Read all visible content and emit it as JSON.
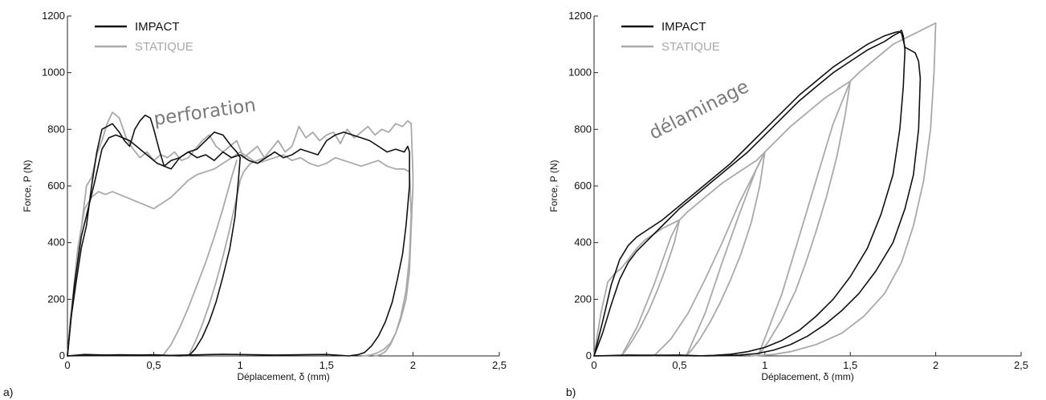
{
  "colors": {
    "impact": "#111111",
    "statique": "#a9a9a9",
    "axis": "#222222",
    "annotation": "#7a7a7a"
  },
  "chart_data": [
    {
      "type": "line",
      "panel_label": "a)",
      "xlabel": "Déplacement, δ (mm)",
      "ylabel": "Force, P (N)",
      "xlim": [
        0,
        2.5
      ],
      "ylim": [
        0,
        1200
      ],
      "xticks": [
        0,
        0.5,
        1,
        1.5,
        2,
        2.5
      ],
      "xtick_labels": [
        "0",
        "0,5",
        "1",
        "1,5",
        "2",
        "2,5"
      ],
      "yticks": [
        0,
        200,
        400,
        600,
        800,
        1000,
        1200
      ],
      "ytick_labels": [
        "0",
        "200",
        "400",
        "600",
        "800",
        "1000",
        "1200"
      ],
      "grid": false,
      "legend": {
        "position": "top-left",
        "entries": [
          {
            "label": "IMPACT",
            "color": "#111111"
          },
          {
            "label": "STATIQUE",
            "color": "#a9a9a9"
          }
        ]
      },
      "annotations": [
        {
          "text": "perforation",
          "x": 0.8,
          "y": 840,
          "rotation": -8
        }
      ],
      "series": [
        {
          "color": "#a9a9a9",
          "x": [
            0,
            0.02,
            0.05,
            0.08,
            0.11,
            0.14,
            0.17,
            0.2,
            0.23,
            0.26,
            0.3,
            0.34,
            0.38,
            0.42,
            0.46,
            0.5,
            0.54,
            0.58,
            0.62,
            0.66,
            0.7,
            0.74,
            0.78,
            0.82,
            0.86,
            0.9,
            0.94,
            0.98,
            1.02,
            1.06,
            1.1,
            1.14,
            1.18,
            1.22,
            1.26,
            1.3,
            1.34,
            1.38,
            1.42,
            1.46,
            1.5,
            1.54,
            1.58,
            1.62,
            1.66,
            1.7,
            1.74,
            1.78,
            1.82,
            1.86,
            1.9,
            1.94,
            1.97,
            1.99,
            2.0,
            2.0,
            1.99,
            1.98,
            1.96,
            1.93,
            1.9,
            1.87,
            1.83,
            1.79,
            1.76,
            1.73,
            1.71
          ],
          "y": [
            0,
            150,
            300,
            450,
            600,
            630,
            710,
            760,
            820,
            860,
            840,
            770,
            730,
            700,
            720,
            690,
            710,
            700,
            720,
            690,
            700,
            730,
            760,
            780,
            740,
            720,
            740,
            760,
            700,
            720,
            740,
            700,
            730,
            760,
            720,
            740,
            810,
            770,
            790,
            760,
            780,
            790,
            750,
            800,
            770,
            790,
            810,
            780,
            800,
            790,
            820,
            810,
            830,
            820,
            640,
            600,
            450,
            300,
            200,
            130,
            80,
            45,
            22,
            10,
            4,
            1,
            0
          ]
        },
        {
          "color": "#a9a9a9",
          "x": [
            0,
            0.03,
            0.06,
            0.1,
            0.14,
            0.18,
            0.22,
            0.26,
            0.3,
            0.34,
            0.38,
            0.42,
            0.46,
            0.5,
            0.55,
            0.6,
            0.65,
            0.7,
            0.75,
            0.8,
            0.85,
            0.9,
            0.95,
            1.0,
            1.05,
            1.1,
            1.15,
            1.2,
            1.25,
            1.3,
            1.35,
            1.4,
            1.45,
            1.5,
            1.55,
            1.6,
            1.65,
            1.7,
            1.75,
            1.8,
            1.85,
            1.9,
            1.95,
            1.98,
            1.99,
            1.98,
            1.96,
            1.93,
            1.9,
            1.87,
            1.84,
            1.81,
            1.78
          ],
          "y": [
            0,
            200,
            380,
            520,
            560,
            580,
            570,
            580,
            570,
            560,
            550,
            540,
            530,
            520,
            540,
            560,
            590,
            620,
            640,
            650,
            660,
            680,
            700,
            720,
            700,
            680,
            690,
            700,
            710,
            690,
            700,
            680,
            670,
            680,
            700,
            690,
            680,
            670,
            680,
            690,
            670,
            660,
            660,
            650,
            500,
            350,
            230,
            140,
            80,
            40,
            15,
            4,
            0
          ]
        },
        {
          "color": "#a9a9a9",
          "x": [
            0.7,
            0.74,
            0.78,
            0.82,
            0.86,
            0.9,
            0.94,
            0.98,
            1.0,
            1.02,
            1.06,
            1.1,
            1.14,
            1.18
          ],
          "y": [
            0,
            50,
            110,
            180,
            260,
            350,
            450,
            560,
            620,
            650,
            680,
            690,
            700,
            710
          ]
        },
        {
          "color": "#a9a9a9",
          "x": [
            0.55,
            0.6,
            0.65,
            0.7,
            0.75,
            0.8,
            0.85,
            0.9,
            0.95,
            0.98
          ],
          "y": [
            0,
            40,
            100,
            170,
            250,
            330,
            420,
            520,
            630,
            690
          ]
        },
        {
          "color": "#111111",
          "x": [
            0,
            0.02,
            0.05,
            0.08,
            0.11,
            0.14,
            0.17,
            0.2,
            0.23,
            0.26,
            0.3,
            0.33,
            0.36,
            0.39,
            0.42,
            0.45,
            0.48,
            0.5,
            0.53,
            0.56,
            0.6,
            0.65,
            0.7,
            0.75,
            0.8,
            0.85,
            0.9,
            0.95,
            0.98,
            1.0,
            1.0,
            0.99,
            0.97,
            0.94,
            0.9,
            0.86,
            0.82,
            0.78,
            0.74,
            0.71,
            0.7,
            0.65,
            0.5,
            0.3,
            0.1,
            0.0
          ],
          "y": [
            0,
            130,
            260,
            380,
            460,
            600,
            720,
            800,
            810,
            820,
            790,
            760,
            740,
            800,
            830,
            850,
            840,
            800,
            730,
            670,
            660,
            700,
            720,
            730,
            760,
            790,
            780,
            740,
            720,
            700,
            700,
            620,
            490,
            380,
            280,
            190,
            120,
            65,
            25,
            5,
            2,
            0,
            4,
            2,
            5,
            0
          ]
        },
        {
          "color": "#111111",
          "x": [
            0,
            0.04,
            0.08,
            0.12,
            0.16,
            0.2,
            0.24,
            0.28,
            0.32,
            0.36,
            0.4,
            0.44,
            0.48,
            0.52,
            0.56,
            0.6,
            0.65,
            0.7,
            0.75,
            0.8,
            0.85,
            0.9,
            0.95,
            1.0,
            1.05,
            1.1,
            1.15,
            1.2,
            1.25,
            1.3,
            1.35,
            1.4,
            1.45,
            1.5,
            1.55,
            1.6,
            1.65,
            1.7,
            1.75,
            1.8,
            1.85,
            1.9,
            1.95,
            1.97,
            1.98,
            1.98,
            1.96,
            1.94,
            1.91,
            1.88,
            1.84,
            1.8,
            1.76,
            1.72,
            1.68,
            1.65,
            1.63,
            1.5,
            1.2,
            0.9,
            0.6,
            0.3,
            0.0
          ],
          "y": [
            0,
            250,
            420,
            520,
            620,
            730,
            770,
            780,
            770,
            760,
            740,
            720,
            700,
            680,
            670,
            690,
            700,
            720,
            700,
            710,
            690,
            720,
            700,
            710,
            690,
            680,
            700,
            720,
            700,
            710,
            730,
            720,
            710,
            760,
            780,
            790,
            780,
            770,
            760,
            740,
            720,
            730,
            720,
            740,
            720,
            600,
            460,
            360,
            270,
            190,
            120,
            70,
            35,
            12,
            4,
            2,
            0,
            5,
            3,
            6,
            2,
            4,
            0
          ]
        }
      ]
    },
    {
      "type": "line",
      "panel_label": "b)",
      "xlabel": "Déplacement, δ  (mm)",
      "ylabel": "Force, P (N)",
      "xlim": [
        0,
        2.5
      ],
      "ylim": [
        0,
        1200
      ],
      "xticks": [
        0,
        0.5,
        1,
        1.5,
        2,
        2.5
      ],
      "xtick_labels": [
        "0",
        "0,5",
        "1",
        "1,5",
        "2",
        "2,5"
      ],
      "yticks": [
        0,
        200,
        400,
        600,
        800,
        1000,
        1200
      ],
      "ytick_labels": [
        "0",
        "200",
        "400",
        "600",
        "800",
        "1000",
        "1200"
      ],
      "grid": false,
      "legend": {
        "position": "top-left",
        "entries": [
          {
            "label": "IMPACT",
            "color": "#111111"
          },
          {
            "label": "STATIQUE",
            "color": "#a9a9a9"
          }
        ]
      },
      "annotations": [
        {
          "text": "délaminage",
          "x": 0.63,
          "y": 850,
          "rotation": -27
        }
      ],
      "series": [
        {
          "color": "#a9a9a9",
          "x": [
            0,
            0.04,
            0.08,
            0.12,
            0.16,
            0.2,
            0.25,
            0.3,
            0.35,
            0.4,
            0.45,
            0.5,
            0.47,
            0.42,
            0.37,
            0.32,
            0.27,
            0.22,
            0.18,
            0.16
          ],
          "y": [
            0,
            150,
            260,
            290,
            310,
            340,
            380,
            410,
            430,
            450,
            465,
            480,
            400,
            310,
            230,
            160,
            100,
            50,
            15,
            0
          ]
        },
        {
          "color": "#a9a9a9",
          "x": [
            0.16,
            0.25,
            0.35,
            0.45,
            0.5,
            0.55,
            0.65,
            0.75,
            0.85,
            0.95,
            1.0,
            0.97,
            0.92,
            0.86,
            0.8,
            0.74,
            0.68,
            0.62,
            0.57,
            0.54
          ],
          "y": [
            0,
            100,
            250,
            420,
            480,
            510,
            560,
            610,
            650,
            690,
            720,
            600,
            470,
            360,
            270,
            190,
            120,
            60,
            20,
            0
          ]
        },
        {
          "color": "#a9a9a9",
          "x": [
            0.54,
            0.65,
            0.75,
            0.85,
            0.95,
            1.0,
            1.05,
            1.15,
            1.25,
            1.35,
            1.45,
            1.5,
            1.47,
            1.42,
            1.36,
            1.3,
            1.24,
            1.18,
            1.1,
            1.02,
            0.96
          ],
          "y": [
            0,
            150,
            330,
            500,
            660,
            720,
            750,
            810,
            860,
            910,
            950,
            970,
            850,
            700,
            560,
            440,
            330,
            230,
            130,
            50,
            0
          ]
        },
        {
          "color": "#a9a9a9",
          "x": [
            0.96,
            1.1,
            1.2,
            1.3,
            1.4,
            1.5,
            1.55,
            1.65,
            1.75,
            1.85,
            1.95,
            2.0,
            1.99,
            1.97,
            1.93,
            1.87,
            1.8,
            1.7,
            1.58,
            1.45,
            1.3,
            1.15,
            1.05,
            0.92
          ],
          "y": [
            0,
            220,
            420,
            620,
            820,
            970,
            1000,
            1050,
            1100,
            1130,
            1160,
            1175,
            1000,
            800,
            620,
            460,
            330,
            220,
            140,
            80,
            40,
            15,
            5,
            0
          ]
        },
        {
          "color": "#a9a9a9",
          "x": [
            0.35,
            0.45,
            0.55,
            0.65,
            0.75,
            0.85,
            0.95,
            1.0
          ],
          "y": [
            0,
            60,
            150,
            270,
            400,
            540,
            660,
            720
          ]
        },
        {
          "color": "#111111",
          "x": [
            0,
            0.05,
            0.1,
            0.15,
            0.2,
            0.25,
            0.3,
            0.4,
            0.5,
            0.6,
            0.7,
            0.8,
            0.9,
            1.0,
            1.1,
            1.2,
            1.3,
            1.4,
            1.5,
            1.6,
            1.7,
            1.75,
            1.78,
            1.8,
            1.82,
            1.85,
            1.88,
            1.9,
            1.91,
            1.9,
            1.87,
            1.82,
            1.75,
            1.65,
            1.55,
            1.45,
            1.35,
            1.25,
            1.15,
            1.05,
            0.95,
            0.85,
            0.75,
            0.65,
            0.5,
            0.3,
            0.0
          ],
          "y": [
            0,
            120,
            250,
            340,
            390,
            420,
            440,
            480,
            530,
            580,
            630,
            680,
            740,
            800,
            860,
            920,
            970,
            1020,
            1060,
            1100,
            1130,
            1140,
            1145,
            1140,
            1090,
            1080,
            1070,
            1040,
            980,
            800,
            640,
            520,
            400,
            300,
            220,
            160,
            110,
            70,
            40,
            20,
            8,
            3,
            1,
            0,
            3,
            2,
            0
          ]
        },
        {
          "color": "#111111",
          "x": [
            0,
            0.05,
            0.1,
            0.15,
            0.2,
            0.25,
            0.3,
            0.4,
            0.5,
            0.6,
            0.7,
            0.8,
            0.9,
            1.0,
            1.1,
            1.2,
            1.3,
            1.4,
            1.5,
            1.6,
            1.7,
            1.75,
            1.78,
            1.8,
            1.81,
            1.82,
            1.81,
            1.79,
            1.75,
            1.68,
            1.6,
            1.5,
            1.4,
            1.3,
            1.2,
            1.1,
            1.0,
            0.9,
            0.8,
            0.7,
            0.6,
            0.45,
            0.2,
            0.0
          ],
          "y": [
            0,
            80,
            180,
            270,
            330,
            370,
            400,
            460,
            520,
            570,
            620,
            670,
            720,
            780,
            840,
            900,
            950,
            1000,
            1040,
            1080,
            1110,
            1130,
            1140,
            1150,
            1130,
            1080,
            950,
            800,
            640,
            500,
            380,
            280,
            200,
            140,
            90,
            55,
            30,
            15,
            6,
            2,
            0,
            2,
            3,
            0
          ]
        }
      ]
    }
  ]
}
